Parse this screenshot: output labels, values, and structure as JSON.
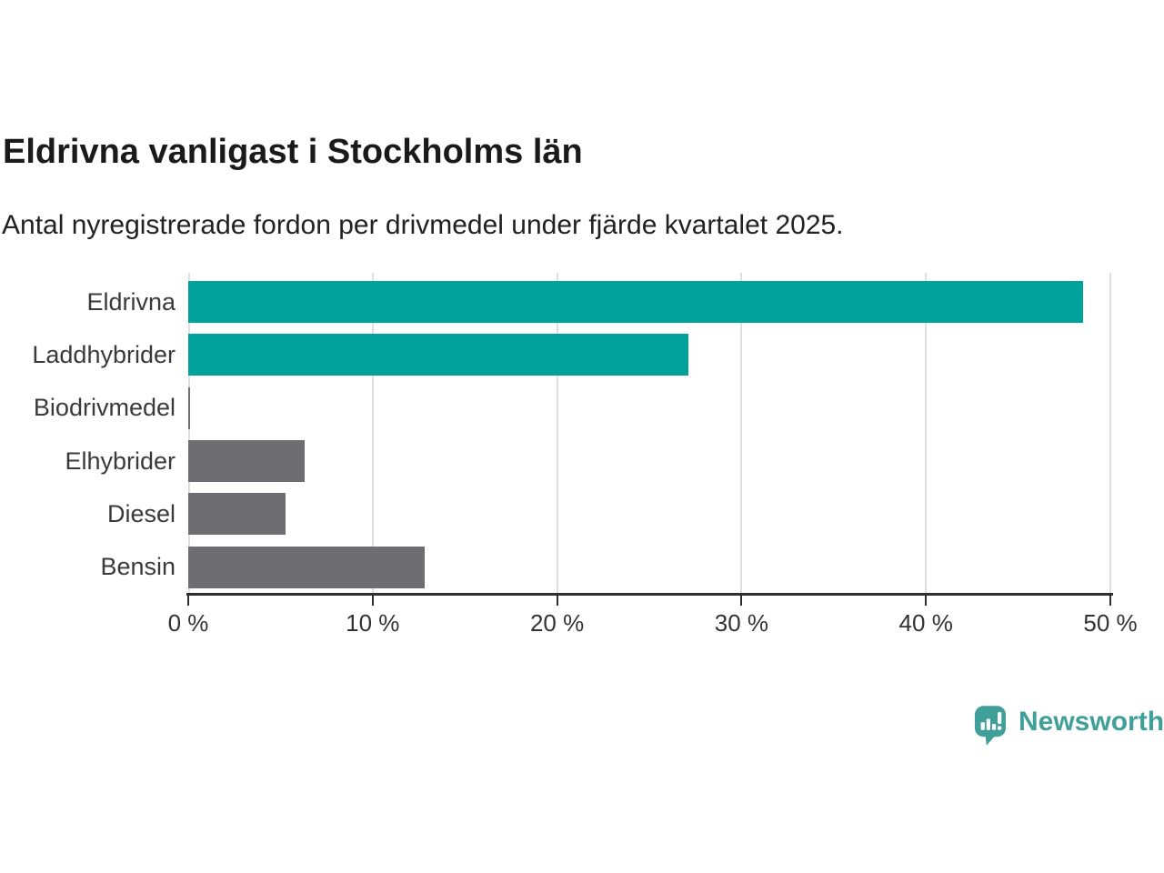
{
  "chart_data": {
    "type": "bar",
    "orientation": "horizontal",
    "title": "Eldrivna vanligast i Stockholms län",
    "subtitle": "Antal nyregistrerade fordon per drivmedel under fjärde kvartalet 2025.",
    "categories": [
      "Eldrivna",
      "Laddhybrider",
      "Biodrivmedel",
      "Elhybrider",
      "Diesel",
      "Bensin"
    ],
    "values": [
      48.5,
      27.1,
      0.1,
      6.3,
      5.3,
      12.8
    ],
    "unit": "%",
    "bar_colors": [
      "#00a29b",
      "#00a29b",
      "#6e6e72",
      "#6e6e72",
      "#6e6e72",
      "#6e6e72"
    ],
    "xlabel": "",
    "ylabel": "",
    "xlim": [
      0,
      50
    ],
    "x_ticks": [
      0,
      10,
      20,
      30,
      40,
      50
    ],
    "x_tick_labels": [
      "0 %",
      "10 %",
      "20 %",
      "30 %",
      "40 %",
      "50 %"
    ],
    "grid": true,
    "legend": "none"
  },
  "footer": {
    "brand": "Newsworthy",
    "brand_color": "#419f99"
  },
  "colors": {
    "accent_teal": "#00a29b",
    "neutral_gray": "#6e6e72",
    "gridline": "#dedede",
    "axis": "#2e2e2e"
  }
}
